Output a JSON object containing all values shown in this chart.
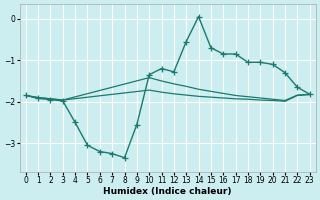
{
  "xlabel": "Humidex (Indice chaleur)",
  "bg_color": "#cceef0",
  "line_color": "#1a7a6e",
  "grid_color": "#ffffff",
  "xlim": [
    -0.5,
    23.5
  ],
  "ylim": [
    -3.7,
    0.35
  ],
  "yticks": [
    0,
    -1,
    -2,
    -3
  ],
  "xticks": [
    0,
    1,
    2,
    3,
    4,
    5,
    6,
    7,
    8,
    9,
    10,
    11,
    12,
    13,
    14,
    15,
    16,
    17,
    18,
    19,
    20,
    21,
    22,
    23
  ],
  "line1_x": [
    0,
    1,
    2,
    3,
    4,
    5,
    6,
    7,
    8,
    9,
    10,
    11,
    12,
    13,
    14,
    15,
    16,
    17,
    18,
    19,
    20,
    21,
    22,
    23
  ],
  "line1_y": [
    -1.85,
    -1.92,
    -1.95,
    -1.98,
    -2.5,
    -3.05,
    -3.2,
    -3.25,
    -3.35,
    -2.55,
    -1.35,
    -1.2,
    -1.28,
    -0.55,
    0.05,
    -0.7,
    -0.85,
    -0.85,
    -1.05,
    -1.05,
    -1.1,
    -1.3,
    -1.65,
    -1.82
  ],
  "line2_x": [
    0,
    1,
    2,
    3,
    10,
    11,
    12,
    13,
    14,
    15,
    16,
    17,
    18,
    19,
    20,
    21,
    22,
    23
  ],
  "line2_y": [
    -1.85,
    -1.9,
    -1.93,
    -1.96,
    -1.42,
    -1.5,
    -1.57,
    -1.63,
    -1.7,
    -1.75,
    -1.8,
    -1.85,
    -1.88,
    -1.91,
    -1.94,
    -1.97,
    -1.84,
    -1.82
  ],
  "line3_x": [
    0,
    1,
    2,
    3,
    10,
    11,
    12,
    13,
    14,
    15,
    16,
    17,
    18,
    19,
    20,
    21,
    22,
    23
  ],
  "line3_y": [
    -1.85,
    -1.9,
    -1.93,
    -1.96,
    -1.72,
    -1.77,
    -1.81,
    -1.84,
    -1.87,
    -1.89,
    -1.91,
    -1.93,
    -1.94,
    -1.96,
    -1.97,
    -1.99,
    -1.85,
    -1.83
  ]
}
